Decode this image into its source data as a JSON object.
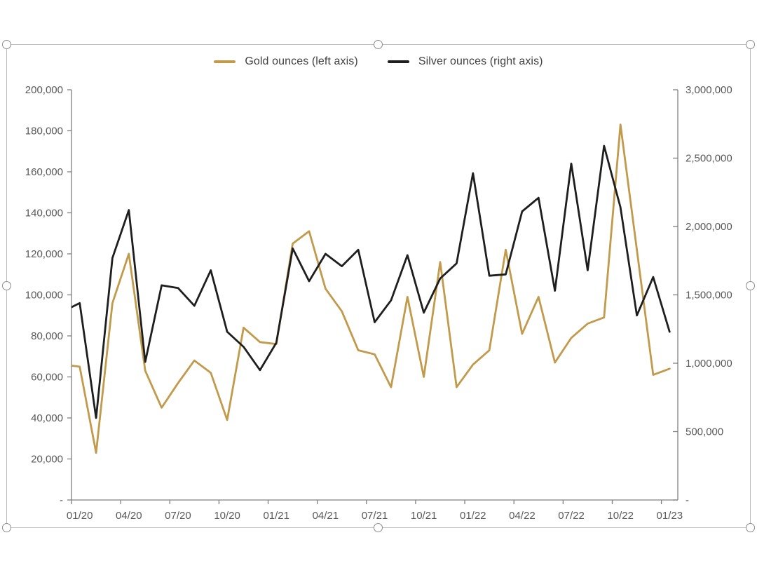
{
  "chart": {
    "legend": [
      {
        "id": "gold",
        "label": "Gold ounces (left axis)"
      },
      {
        "id": "silver",
        "label": "Silver ounces (right axis)"
      }
    ],
    "colors": {
      "gold_series": "#C19A4B",
      "silver_series": "#1E1E1E",
      "axis_line": "#808080",
      "tick_label": "#595959",
      "legend_text": "#404040"
    },
    "chart_data": {
      "type": "line",
      "title": "",
      "legend_position": "top",
      "gridlines": false,
      "x": [
        "01/20",
        "02/20",
        "03/20",
        "04/20",
        "05/20",
        "06/20",
        "07/20",
        "08/20",
        "09/20",
        "10/20",
        "11/20",
        "12/20",
        "01/21",
        "02/21",
        "03/21",
        "04/21",
        "05/21",
        "06/21",
        "07/21",
        "08/21",
        "09/21",
        "10/21",
        "11/21",
        "12/21",
        "01/22",
        "02/22",
        "03/22",
        "04/22",
        "05/22",
        "06/22",
        "07/22",
        "08/22",
        "09/22",
        "10/22",
        "11/22",
        "12/22",
        "01/23"
      ],
      "x_tick_label_every": 3,
      "x_tick_labels_shown": [
        "01/20",
        "04/20",
        "07/20",
        "10/20",
        "01/21",
        "04/21",
        "07/21",
        "10/21",
        "01/22",
        "04/22",
        "07/22",
        "10/22",
        "01/23"
      ],
      "left_axis": {
        "min": 0,
        "max": 200000,
        "step": 20000,
        "zero_label": "-"
      },
      "right_axis": {
        "min": 0,
        "max": 3000000,
        "step": 500000,
        "zero_label": "-"
      },
      "series": [
        {
          "id": "gold",
          "name": "Gold ounces (left axis)",
          "axis": "left",
          "color": "#C19A4B",
          "lead_in_value": 66000,
          "values": [
            65000,
            23000,
            96000,
            120000,
            63000,
            45000,
            57000,
            68000,
            62000,
            39000,
            84000,
            77000,
            76000,
            125000,
            131000,
            103000,
            92000,
            73000,
            71000,
            55000,
            99000,
            60000,
            116000,
            55000,
            66000,
            73000,
            122000,
            81000,
            99000,
            67000,
            79000,
            86000,
            89000,
            183000,
            122000,
            61000,
            64000
          ]
        },
        {
          "id": "silver",
          "name": "Silver ounces (right axis)",
          "axis": "right",
          "color": "#1E1E1E",
          "lead_in_value": 1380000,
          "values": [
            1440000,
            600000,
            1770000,
            2120000,
            1010000,
            1570000,
            1550000,
            1420000,
            1680000,
            1230000,
            1120000,
            950000,
            1150000,
            1840000,
            1600000,
            1800000,
            1710000,
            1830000,
            1300000,
            1460000,
            1790000,
            1370000,
            1620000,
            1730000,
            2390000,
            1640000,
            1650000,
            2110000,
            2210000,
            1530000,
            2460000,
            1680000,
            2590000,
            2140000,
            1350000,
            1630000,
            1230000
          ]
        }
      ]
    }
  },
  "ui": {
    "selection_handles": [
      "top-left",
      "top-middle",
      "top-right",
      "middle-left",
      "middle-right",
      "bottom-left",
      "bottom-middle",
      "bottom-right"
    ]
  }
}
